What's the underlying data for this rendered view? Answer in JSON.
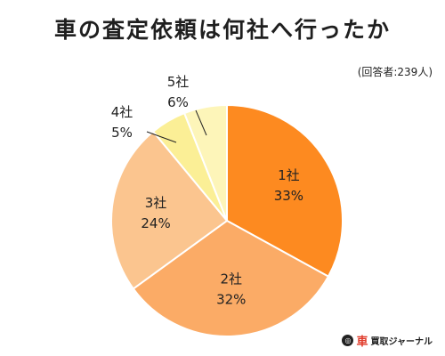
{
  "header": {
    "title": "車の査定依頼は何社へ行ったか",
    "respondents": "(回答者:239人)"
  },
  "chart_data": {
    "type": "pie",
    "title": "車の査定依頼は何社へ行ったか",
    "categories": [
      "1社",
      "2社",
      "3社",
      "4社",
      "5社"
    ],
    "values": [
      33,
      32,
      24,
      5,
      6
    ],
    "value_labels": [
      "33%",
      "32%",
      "24%",
      "5%",
      "6%"
    ],
    "colors": [
      "#fd8a20",
      "#fbab66",
      "#fbc58f",
      "#fbef96",
      "#fdf5b9"
    ],
    "start": "12 o'clock",
    "direction": "clockwise",
    "legend": "none"
  },
  "brand": {
    "icon": "car-icon",
    "name_main": "車",
    "name_rest": "買取ジャーナル"
  }
}
